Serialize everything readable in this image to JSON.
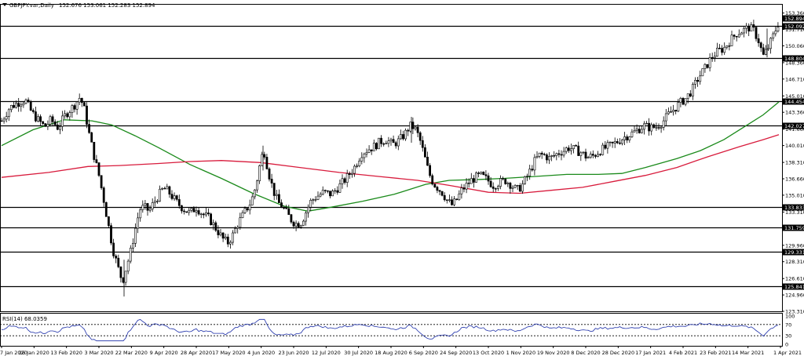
{
  "header": {
    "symbol": "GBPJPY.var,Daily",
    "ohlc": "152.676 153.061 152.283 152.894"
  },
  "rsi": {
    "label": "RSI(14) 68.0359",
    "scale": [
      "100",
      "70",
      "30",
      "0"
    ],
    "levels": [
      70,
      30
    ]
  },
  "colors": {
    "candles": "#000000",
    "ma_fast": "#1a8a1a",
    "ma_slow": "#d81b3c",
    "rsi_line": "#1c2ea8",
    "level_lines": "#000000"
  },
  "chart_data": {
    "type": "candlestick",
    "ylim": [
      123.31,
      154.2
    ],
    "y_ticks": [
      "153.360",
      "151.710",
      "150.060",
      "148.360",
      "146.710",
      "145.010",
      "143.360",
      "141.660",
      "140.010",
      "138.310",
      "136.660",
      "135.010",
      "133.310",
      "131.660",
      "129.960",
      "128.310",
      "126.610",
      "124.960",
      "123.310"
    ],
    "x_ticks": [
      "7 Jan 2020",
      "26 Jan 2020",
      "13 Feb 2020",
      "3 Mar 2020",
      "22 Mar 2020",
      "9 Apr 2020",
      "28 Apr 2020",
      "17 May 2020",
      "4 Jun 2020",
      "23 Jun 2020",
      "12 Jul 2020",
      "30 Jul 2020",
      "18 Aug 2020",
      "6 Sep 2020",
      "24 Sep 2020",
      "13 Oct 2020",
      "1 Nov 2020",
      "19 Nov 2020",
      "8 Dec 2020",
      "28 Dec 2020",
      "17 Jan 2021",
      "4 Feb 2021",
      "23 Feb 2021",
      "14 Mar 2021",
      "1 Apr 2021"
    ],
    "horizontal_levels": [
      "152.092",
      "148.804",
      "144.454",
      "142.027",
      "133.833",
      "131.759",
      "129.331",
      "125.841"
    ],
    "current_price": "152.894",
    "price_path": [
      [
        0,
        142.5
      ],
      [
        10,
        143.8
      ],
      [
        20,
        144.3
      ],
      [
        30,
        144.6
      ],
      [
        38,
        143.4
      ],
      [
        45,
        142.7
      ],
      [
        55,
        141.9
      ],
      [
        63,
        142.6
      ],
      [
        72,
        141.8
      ],
      [
        82,
        143.2
      ],
      [
        92,
        144.0
      ],
      [
        100,
        144.9
      ],
      [
        106,
        143.5
      ],
      [
        112,
        141.0
      ],
      [
        118,
        138.9
      ],
      [
        124,
        137.0
      ],
      [
        130,
        134.6
      ],
      [
        136,
        132.0
      ],
      [
        142,
        129.5
      ],
      [
        148,
        127.8
      ],
      [
        154,
        126.3
      ],
      [
        159,
        127.8
      ],
      [
        164,
        129.2
      ],
      [
        170,
        131.5
      ],
      [
        176,
        133.6
      ],
      [
        182,
        133.8
      ],
      [
        188,
        133.4
      ],
      [
        194,
        134.3
      ],
      [
        200,
        135.0
      ],
      [
        206,
        135.7
      ],
      [
        212,
        135.4
      ],
      [
        218,
        134.8
      ],
      [
        224,
        134.2
      ],
      [
        232,
        133.6
      ],
      [
        240,
        133.2
      ],
      [
        248,
        133.8
      ],
      [
        256,
        133.1
      ],
      [
        264,
        132.7
      ],
      [
        270,
        132.0
      ],
      [
        276,
        131.3
      ],
      [
        282,
        130.6
      ],
      [
        288,
        130.2
      ],
      [
        294,
        130.9
      ],
      [
        300,
        132.0
      ],
      [
        306,
        132.8
      ],
      [
        312,
        133.6
      ],
      [
        318,
        134.4
      ],
      [
        324,
        136.0
      ],
      [
        330,
        138.5
      ],
      [
        334,
        139.6
      ],
      [
        340,
        137.3
      ],
      [
        346,
        135.5
      ],
      [
        352,
        134.3
      ],
      [
        358,
        133.8
      ],
      [
        364,
        133.1
      ],
      [
        370,
        132.4
      ],
      [
        376,
        132.1
      ],
      [
        382,
        132.3
      ],
      [
        388,
        133.4
      ],
      [
        394,
        134.4
      ],
      [
        400,
        134.8
      ],
      [
        410,
        135.3
      ],
      [
        420,
        135.1
      ],
      [
        430,
        135.9
      ],
      [
        440,
        136.8
      ],
      [
        450,
        137.9
      ],
      [
        458,
        139.2
      ],
      [
        466,
        139.6
      ],
      [
        474,
        139.9
      ],
      [
        482,
        140.4
      ],
      [
        490,
        140.6
      ],
      [
        498,
        140.1
      ],
      [
        506,
        140.5
      ],
      [
        514,
        141.2
      ],
      [
        520,
        142.0
      ],
      [
        526,
        141.8
      ],
      [
        532,
        140.8
      ],
      [
        538,
        139.1
      ],
      [
        544,
        137.3
      ],
      [
        550,
        136.2
      ],
      [
        556,
        135.7
      ],
      [
        562,
        135.2
      ],
      [
        568,
        134.4
      ],
      [
        574,
        134.0
      ],
      [
        580,
        134.6
      ],
      [
        586,
        135.5
      ],
      [
        592,
        136.0
      ],
      [
        598,
        136.5
      ],
      [
        604,
        136.8
      ],
      [
        610,
        137.0
      ],
      [
        618,
        136.6
      ],
      [
        626,
        136.0
      ],
      [
        634,
        136.3
      ],
      [
        642,
        136.5
      ],
      [
        650,
        136.0
      ],
      [
        656,
        135.5
      ],
      [
        662,
        135.9
      ],
      [
        668,
        136.7
      ],
      [
        674,
        137.6
      ],
      [
        680,
        138.6
      ],
      [
        686,
        139.1
      ],
      [
        692,
        139.0
      ],
      [
        698,
        138.7
      ],
      [
        704,
        139.0
      ],
      [
        710,
        139.3
      ],
      [
        716,
        139.5
      ],
      [
        722,
        139.8
      ],
      [
        730,
        139.6
      ],
      [
        738,
        139.3
      ],
      [
        746,
        138.8
      ],
      [
        754,
        139.0
      ],
      [
        762,
        139.5
      ],
      [
        770,
        139.8
      ],
      [
        778,
        140.1
      ],
      [
        786,
        140.5
      ],
      [
        794,
        140.9
      ],
      [
        802,
        141.2
      ],
      [
        810,
        141.6
      ],
      [
        818,
        142.0
      ],
      [
        826,
        141.8
      ],
      [
        834,
        141.9
      ],
      [
        842,
        142.4
      ],
      [
        850,
        143.2
      ],
      [
        858,
        143.8
      ],
      [
        864,
        144.3
      ],
      [
        872,
        144.8
      ],
      [
        880,
        145.7
      ],
      [
        888,
        146.9
      ],
      [
        896,
        147.8
      ],
      [
        904,
        148.9
      ],
      [
        912,
        149.5
      ],
      [
        920,
        149.8
      ],
      [
        928,
        150.6
      ],
      [
        936,
        151.3
      ],
      [
        944,
        151.6
      ],
      [
        952,
        151.9
      ],
      [
        958,
        151.6
      ],
      [
        964,
        150.6
      ],
      [
        970,
        149.0
      ],
      [
        976,
        149.8
      ],
      [
        982,
        150.9
      ],
      [
        988,
        152.1
      ],
      [
        992,
        152.9
      ]
    ],
    "series": [
      {
        "style": "line",
        "color": "#1a8a1a",
        "points": [
          [
            0,
            140.0
          ],
          [
            40,
            141.6
          ],
          [
            80,
            142.6
          ],
          [
            115,
            142.5
          ],
          [
            140,
            142.1
          ],
          [
            170,
            141.0
          ],
          [
            200,
            139.8
          ],
          [
            240,
            138.1
          ],
          [
            280,
            136.7
          ],
          [
            320,
            135.2
          ],
          [
            360,
            133.9
          ],
          [
            390,
            133.4
          ],
          [
            420,
            133.8
          ],
          [
            460,
            134.4
          ],
          [
            500,
            135.1
          ],
          [
            540,
            136.1
          ],
          [
            570,
            136.5
          ],
          [
            610,
            136.6
          ],
          [
            640,
            136.7
          ],
          [
            680,
            136.9
          ],
          [
            720,
            137.1
          ],
          [
            760,
            137.1
          ],
          [
            790,
            137.2
          ],
          [
            820,
            137.8
          ],
          [
            860,
            138.7
          ],
          [
            890,
            139.5
          ],
          [
            920,
            140.6
          ],
          [
            950,
            142.1
          ],
          [
            970,
            143.1
          ],
          [
            990,
            144.4
          ]
        ]
      },
      {
        "style": "line",
        "color": "#d81b3c",
        "points": [
          [
            0,
            136.8
          ],
          [
            60,
            137.3
          ],
          [
            110,
            137.9
          ],
          [
            150,
            138.0
          ],
          [
            200,
            138.2
          ],
          [
            240,
            138.4
          ],
          [
            280,
            138.5
          ],
          [
            330,
            138.3
          ],
          [
            380,
            137.8
          ],
          [
            430,
            137.3
          ],
          [
            480,
            136.9
          ],
          [
            530,
            136.5
          ],
          [
            570,
            136.0
          ],
          [
            620,
            135.3
          ],
          [
            660,
            135.2
          ],
          [
            700,
            135.5
          ],
          [
            740,
            135.8
          ],
          [
            780,
            136.4
          ],
          [
            820,
            137.0
          ],
          [
            860,
            137.8
          ],
          [
            900,
            138.9
          ],
          [
            940,
            139.9
          ],
          [
            970,
            140.6
          ],
          [
            990,
            141.1
          ]
        ]
      }
    ]
  }
}
